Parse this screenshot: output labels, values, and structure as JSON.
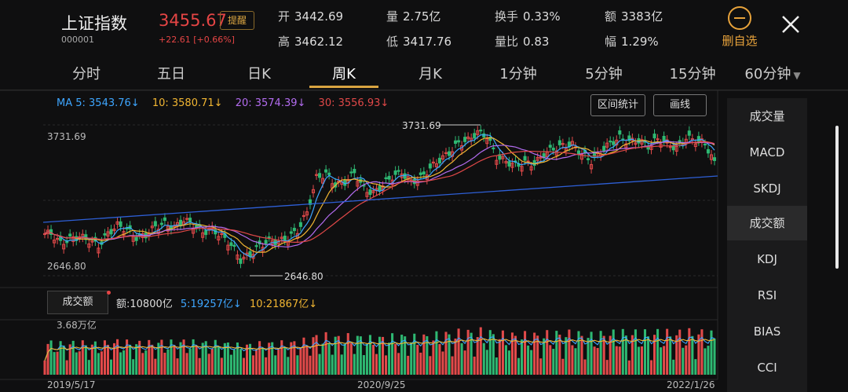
{
  "header": {
    "name": "上证指数",
    "code": "000001",
    "price": "3455.67",
    "change": "+22.61  [+0.66%]",
    "remind_label": "提醒",
    "stats": [
      {
        "key": "开",
        "value": "3442.69"
      },
      {
        "key": "量",
        "value": "2.75亿"
      },
      {
        "key": "换手",
        "value": "0.33%"
      },
      {
        "key": "额",
        "value": "3383亿"
      },
      {
        "key": "高",
        "value": "3462.12"
      },
      {
        "key": "低",
        "value": "3417.76"
      },
      {
        "key": "量比",
        "value": "0.83"
      },
      {
        "key": "幅",
        "value": "1.29%"
      }
    ],
    "remove_watch_label": "删自选"
  },
  "tabs": [
    "分时",
    "五日",
    "日K",
    "周K",
    "月K",
    "1分钟",
    "5分钟",
    "15分钟",
    "60分钟"
  ],
  "active_tab": "周K",
  "ma": {
    "ma5": "MA 5: 3543.76↓",
    "ma10": "10: 3580.71↓",
    "ma20": "20: 3574.39↓",
    "ma30": "30: 3556.93↓",
    "colors": {
      "ma5": "#3ea6ff",
      "ma10": "#f2b632",
      "ma20": "#b36cf0",
      "ma30": "#e04848"
    }
  },
  "buttons": {
    "range_stats": "区间统计",
    "draw_line": "画线"
  },
  "price_axis": {
    "high_label": "3731.69",
    "low_label": "2646.80",
    "peak_annotation": "3731.69",
    "trough_annotation": "2646.80"
  },
  "indicators": [
    "成交量",
    "MACD",
    "SKDJ",
    "成交额",
    "KDJ",
    "RSI",
    "BIAS",
    "CCI"
  ],
  "selected_indicator": "成交额",
  "volume": {
    "button_label": "成交额",
    "amount": "额:10800亿",
    "ma5": "5:19257亿↓",
    "ma10": "10:21867亿↓",
    "max_label": "3.68万亿"
  },
  "dates": [
    "2019/5/17",
    "2020/9/25",
    "2022/1/26"
  ],
  "chart_data": {
    "type": "candlestick",
    "ylim": [
      2646.8,
      3731.69
    ],
    "high": 3731.69,
    "low": 2646.8,
    "x_labels": [
      "2019/5/17",
      "2020/9/25",
      "2022/1/26"
    ],
    "close_trend": [
      2950,
      2880,
      2910,
      2930,
      2900,
      2860,
      2950,
      3010,
      2980,
      2920,
      2940,
      3000,
      3020,
      2990,
      3050,
      3010,
      2960,
      2980,
      2930,
      2870,
      2760,
      2800,
      2860,
      2900,
      2890,
      2920,
      2970,
      3100,
      3350,
      3380,
      3300,
      3320,
      3390,
      3270,
      3240,
      3300,
      3360,
      3390,
      3320,
      3350,
      3420,
      3480,
      3530,
      3600,
      3620,
      3680,
      3650,
      3500,
      3470,
      3440,
      3460,
      3450,
      3520,
      3560,
      3580,
      3590,
      3520,
      3470,
      3540,
      3600,
      3640,
      3610,
      3620,
      3580,
      3630,
      3600,
      3560,
      3640,
      3620,
      3600,
      3455.67
    ]
  }
}
